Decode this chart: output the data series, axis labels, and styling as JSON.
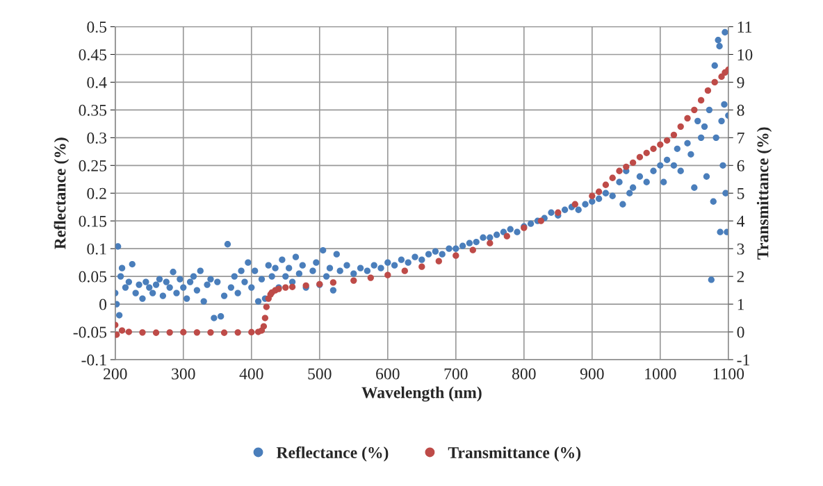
{
  "chart_data": {
    "type": "scatter",
    "xlabel": "Wavelength (nm)",
    "ylabel": "Reflectance (%)",
    "y2label": "Transmittance (%)",
    "xlim": [
      200,
      1100
    ],
    "xticks": [
      200,
      300,
      400,
      500,
      600,
      700,
      800,
      900,
      1000,
      1100
    ],
    "ylim": [
      -0.1,
      0.5
    ],
    "yticks": [
      -0.1,
      -0.05,
      0,
      0.05,
      0.1,
      0.15,
      0.2,
      0.25,
      0.3,
      0.35,
      0.4,
      0.45,
      0.5
    ],
    "y2lim": [
      -1,
      11
    ],
    "y2ticks": [
      -1,
      0,
      1,
      2,
      3,
      4,
      5,
      6,
      7,
      8,
      9,
      10,
      11
    ],
    "grid": true,
    "legend": "bottom",
    "marker": "circle",
    "series": [
      {
        "name": "Reflectance (%)",
        "color": "#4a7ebb",
        "x": [
          200,
          202,
          204,
          206,
          208,
          210,
          215,
          220,
          225,
          230,
          235,
          240,
          245,
          250,
          255,
          260,
          265,
          270,
          275,
          280,
          285,
          290,
          295,
          300,
          305,
          310,
          315,
          320,
          325,
          330,
          335,
          340,
          345,
          350,
          355,
          360,
          365,
          370,
          375,
          380,
          385,
          390,
          395,
          400,
          405,
          410,
          415,
          420,
          425,
          430,
          435,
          440,
          445,
          450,
          455,
          460,
          465,
          470,
          475,
          480,
          490,
          495,
          500,
          505,
          510,
          515,
          520,
          525,
          530,
          540,
          550,
          560,
          570,
          580,
          590,
          600,
          610,
          620,
          630,
          640,
          650,
          660,
          670,
          680,
          690,
          700,
          710,
          720,
          730,
          740,
          750,
          760,
          770,
          780,
          790,
          800,
          810,
          820,
          830,
          840,
          850,
          860,
          870,
          880,
          890,
          900,
          910,
          920,
          930,
          940,
          945,
          950,
          955,
          960,
          970,
          980,
          990,
          1000,
          1005,
          1010,
          1020,
          1025,
          1030,
          1040,
          1045,
          1050,
          1055,
          1060,
          1065,
          1068,
          1072,
          1075,
          1078,
          1080,
          1082,
          1085,
          1087,
          1088,
          1090,
          1092,
          1094,
          1095,
          1096,
          1098,
          1100
        ],
        "values": [
          0.02,
          0.0,
          0.104,
          -0.02,
          0.05,
          0.065,
          0.03,
          0.04,
          0.072,
          0.02,
          0.035,
          0.01,
          0.04,
          0.03,
          0.02,
          0.035,
          0.045,
          0.015,
          0.04,
          0.03,
          0.058,
          0.02,
          0.045,
          0.03,
          0.01,
          0.04,
          0.05,
          0.025,
          0.06,
          0.005,
          0.035,
          0.045,
          -0.025,
          0.04,
          -0.022,
          0.015,
          0.108,
          0.03,
          0.05,
          0.02,
          0.06,
          0.04,
          0.075,
          0.03,
          0.06,
          0.005,
          0.045,
          0.01,
          0.07,
          0.05,
          0.065,
          0.03,
          0.08,
          0.05,
          0.065,
          0.04,
          0.085,
          0.055,
          0.07,
          0.03,
          0.06,
          0.075,
          0.035,
          0.097,
          0.05,
          0.065,
          0.025,
          0.09,
          0.06,
          0.07,
          0.055,
          0.065,
          0.06,
          0.07,
          0.065,
          0.075,
          0.07,
          0.08,
          0.075,
          0.085,
          0.08,
          0.09,
          0.095,
          0.09,
          0.1,
          0.1,
          0.105,
          0.11,
          0.112,
          0.12,
          0.12,
          0.125,
          0.13,
          0.135,
          0.13,
          0.14,
          0.145,
          0.15,
          0.155,
          0.165,
          0.16,
          0.17,
          0.175,
          0.17,
          0.18,
          0.185,
          0.19,
          0.2,
          0.195,
          0.22,
          0.18,
          0.24,
          0.2,
          0.21,
          0.23,
          0.22,
          0.24,
          0.25,
          0.22,
          0.26,
          0.25,
          0.28,
          0.24,
          0.29,
          0.27,
          0.21,
          0.33,
          0.3,
          0.32,
          0.23,
          0.35,
          0.044,
          0.185,
          0.43,
          0.3,
          0.476,
          0.465,
          0.13,
          0.33,
          0.25,
          0.36,
          0.49,
          0.2,
          0.13,
          0.34
        ]
      },
      {
        "name": "Transmittance (%)",
        "color": "#be4b48",
        "axis": "y2",
        "x": [
          200,
          202,
          210,
          220,
          240,
          260,
          280,
          300,
          320,
          340,
          360,
          380,
          400,
          410,
          415,
          418,
          420,
          422,
          425,
          428,
          430,
          435,
          440,
          450,
          460,
          480,
          500,
          520,
          550,
          575,
          600,
          625,
          650,
          675,
          700,
          725,
          750,
          775,
          800,
          825,
          850,
          875,
          900,
          910,
          920,
          930,
          940,
          950,
          960,
          970,
          980,
          990,
          1000,
          1010,
          1020,
          1030,
          1040,
          1050,
          1060,
          1070,
          1080,
          1090,
          1095,
          1100
        ],
        "values": [
          0.25,
          -0.1,
          0.05,
          0.0,
          -0.02,
          -0.03,
          -0.02,
          -0.01,
          -0.02,
          -0.02,
          -0.03,
          -0.02,
          -0.01,
          0.0,
          0.05,
          0.2,
          0.5,
          0.9,
          1.2,
          1.35,
          1.42,
          1.5,
          1.55,
          1.6,
          1.62,
          1.67,
          1.72,
          1.78,
          1.85,
          1.95,
          2.05,
          2.2,
          2.35,
          2.55,
          2.75,
          2.95,
          3.2,
          3.45,
          3.75,
          4.0,
          4.3,
          4.6,
          4.9,
          5.05,
          5.3,
          5.55,
          5.8,
          5.95,
          6.1,
          6.3,
          6.45,
          6.6,
          6.75,
          6.9,
          7.1,
          7.4,
          7.7,
          8.0,
          8.35,
          8.7,
          9.0,
          9.2,
          9.35,
          9.45
        ]
      }
    ]
  }
}
